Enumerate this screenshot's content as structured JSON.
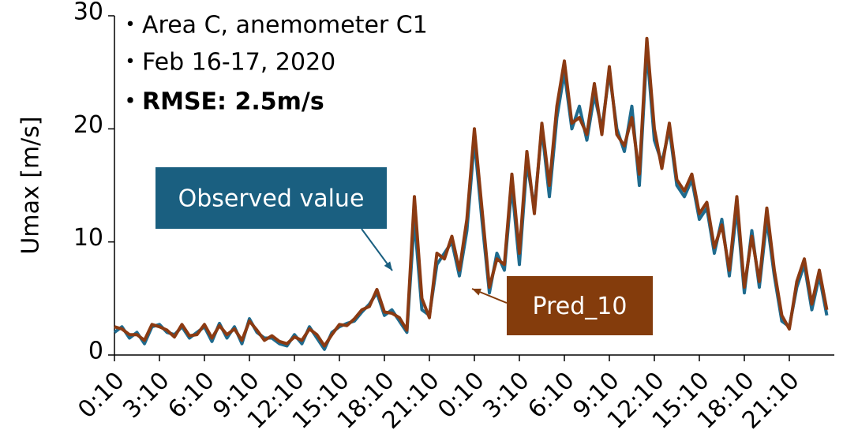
{
  "chart_data": {
    "type": "line",
    "y_label": "Umax [m/s]",
    "annotations": [
      "・Area C, anemometer C1",
      "・Feb 16-17, 2020",
      "・RMSE: 2.5m/s"
    ],
    "categories": [
      "0:10",
      null,
      null,
      null,
      null,
      null,
      "3:10",
      null,
      null,
      null,
      null,
      null,
      "6:10",
      null,
      null,
      null,
      null,
      null,
      "9:10",
      null,
      null,
      null,
      null,
      null,
      "12:10",
      null,
      null,
      null,
      null,
      null,
      "15:10",
      null,
      null,
      null,
      null,
      null,
      "18:10",
      null,
      null,
      null,
      null,
      null,
      "21:10",
      null,
      null,
      null,
      null,
      null,
      "0:10",
      null,
      null,
      null,
      null,
      null,
      "3:10",
      null,
      null,
      null,
      null,
      null,
      "6:10",
      null,
      null,
      null,
      null,
      null,
      "9:10",
      null,
      null,
      null,
      null,
      null,
      "12:10",
      null,
      null,
      null,
      null,
      null,
      "15:10",
      null,
      null,
      null,
      null,
      null,
      "18:10",
      null,
      null,
      null,
      null,
      null,
      "21:10",
      null,
      null,
      null,
      null,
      null
    ],
    "series": [
      {
        "name": "Observed value",
        "color": "#1f6b8e",
        "values": [
          2,
          2.5,
          1.5,
          2,
          1,
          2.5,
          2.7,
          2,
          1.8,
          2.5,
          1.5,
          2,
          2.5,
          1.2,
          2.8,
          1.5,
          2.5,
          1,
          3.2,
          2,
          1.5,
          1.5,
          1,
          0.8,
          1.8,
          1,
          2.5,
          1.5,
          0.5,
          2,
          2.5,
          2.8,
          3,
          3.8,
          4.5,
          5.5,
          3.5,
          4,
          3,
          2,
          12,
          4,
          3.5,
          8,
          9,
          10,
          7,
          11,
          19,
          12,
          5.5,
          9,
          7.5,
          15,
          8,
          17,
          13,
          20,
          14,
          21,
          25,
          20,
          22,
          19,
          23,
          20,
          25,
          20,
          18,
          22,
          15,
          27,
          19,
          17,
          20,
          15,
          14,
          15.5,
          12,
          13,
          9,
          12,
          7,
          13,
          5.5,
          11,
          6,
          12,
          7,
          3,
          2.5,
          6,
          8,
          4,
          7,
          3.5
        ]
      },
      {
        "name": "Pred_10",
        "color": "#8b3a12",
        "values": [
          2.5,
          2.3,
          1.8,
          1.8,
          1.3,
          2.7,
          2.5,
          2.2,
          1.6,
          2.7,
          1.7,
          1.8,
          2.7,
          1.5,
          2.6,
          1.8,
          2.3,
          1.3,
          3,
          2.2,
          1.3,
          1.7,
          1.2,
          1,
          1.6,
          1.3,
          2.3,
          1.8,
          0.8,
          1.8,
          2.7,
          2.6,
          3.2,
          4,
          4.3,
          5.8,
          3.8,
          3.7,
          3.3,
          2.2,
          14,
          5,
          3.3,
          9,
          8.5,
          10.5,
          7.5,
          12,
          20,
          13,
          6,
          8.5,
          8,
          16,
          9,
          18,
          12.5,
          20.5,
          15,
          22,
          26,
          20.5,
          21,
          19.5,
          24,
          19.5,
          25.5,
          19.5,
          18.5,
          21,
          16,
          28,
          20,
          16.5,
          20.5,
          15.5,
          14.5,
          16,
          12.5,
          13.5,
          9.5,
          11.5,
          7.5,
          14,
          6,
          10.5,
          6.5,
          13,
          7.5,
          3.5,
          2.3,
          6.5,
          8.5,
          4.5,
          7.5,
          4
        ]
      }
    ],
    "ylim": [
      0,
      30
    ],
    "yticks": [
      0,
      10,
      20,
      30
    ],
    "grid": false
  }
}
